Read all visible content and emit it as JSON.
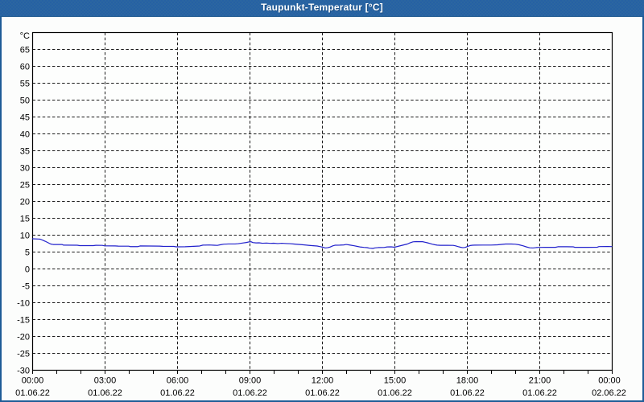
{
  "window": {
    "title": "Taupunkt-Temperatur [°C]"
  },
  "colors": {
    "title_bar_bg": "#2b66a0",
    "title_text": "#ffffff",
    "window_border": "#1e5c97",
    "content_bg": "#fcfdfc",
    "plot_bg": "#fdfefd",
    "axis_frame": "#000000",
    "grid": "#1a1a1a",
    "label_text": "#000000",
    "curve": "#2121cc"
  },
  "chart_data": {
    "type": "line",
    "title": "Taupunkt-Temperatur [°C]",
    "ylabel": "",
    "xlabel": "",
    "y_unit_label": "°C",
    "ylim": [
      -30,
      70
    ],
    "y_tick_step": 5,
    "y_labeled_max": 65,
    "x_range_minutes": [
      0,
      1440
    ],
    "x_major_step_minutes": 180,
    "x_minor_step_minutes": 60,
    "grid": "dashed",
    "legend": "none",
    "x_tick_labels": [
      {
        "time": "00:00",
        "date": "01.06.22"
      },
      {
        "time": "03:00",
        "date": "01.06.22"
      },
      {
        "time": "06:00",
        "date": "01.06.22"
      },
      {
        "time": "09:00",
        "date": "01.06.22"
      },
      {
        "time": "12:00",
        "date": "01.06.22"
      },
      {
        "time": "15:00",
        "date": "01.06.22"
      },
      {
        "time": "18:00",
        "date": "01.06.22"
      },
      {
        "time": "21:00",
        "date": "01.06.22"
      },
      {
        "time": "00:00",
        "date": "02.06.22"
      }
    ],
    "series": [
      {
        "name": "Taupunkt-Temperatur",
        "color": "#2121cc",
        "points_t_min_v_degC": [
          [
            0,
            8.93
          ],
          [
            15,
            8.86
          ],
          [
            19,
            8.81
          ],
          [
            25,
            8.52
          ],
          [
            31,
            8.21
          ],
          [
            39,
            7.74
          ],
          [
            45,
            7.38
          ],
          [
            51,
            7.24
          ],
          [
            73,
            7.24
          ],
          [
            77,
            7.05
          ],
          [
            111,
            7.02
          ],
          [
            117,
            6.9
          ],
          [
            151,
            6.9
          ],
          [
            157,
            7.0
          ],
          [
            173,
            6.98
          ],
          [
            179,
            6.83
          ],
          [
            205,
            6.81
          ],
          [
            213,
            6.76
          ],
          [
            239,
            6.74
          ],
          [
            243,
            6.6
          ],
          [
            261,
            6.6
          ],
          [
            267,
            6.81
          ],
          [
            315,
            6.76
          ],
          [
            323,
            6.69
          ],
          [
            351,
            6.67
          ],
          [
            357,
            6.55
          ],
          [
            379,
            6.57
          ],
          [
            395,
            6.67
          ],
          [
            415,
            6.79
          ],
          [
            423,
            7.05
          ],
          [
            439,
            7.1
          ],
          [
            451,
            7.02
          ],
          [
            459,
            6.98
          ],
          [
            467,
            7.17
          ],
          [
            475,
            7.33
          ],
          [
            487,
            7.4
          ],
          [
            503,
            7.4
          ],
          [
            511,
            7.48
          ],
          [
            523,
            7.69
          ],
          [
            531,
            7.83
          ],
          [
            537,
            8.0
          ],
          [
            543,
            8.05
          ],
          [
            547,
            7.81
          ],
          [
            555,
            7.71
          ],
          [
            563,
            7.74
          ],
          [
            571,
            7.6
          ],
          [
            581,
            7.67
          ],
          [
            591,
            7.57
          ],
          [
            599,
            7.62
          ],
          [
            609,
            7.52
          ],
          [
            619,
            7.6
          ],
          [
            631,
            7.52
          ],
          [
            639,
            7.48
          ],
          [
            649,
            7.38
          ],
          [
            661,
            7.26
          ],
          [
            673,
            7.14
          ],
          [
            685,
            7.0
          ],
          [
            697,
            6.88
          ],
          [
            707,
            6.79
          ],
          [
            715,
            6.6
          ],
          [
            721,
            6.43
          ],
          [
            727,
            6.21
          ],
          [
            733,
            6.29
          ],
          [
            739,
            6.48
          ],
          [
            745,
            6.81
          ],
          [
            751,
            7.02
          ],
          [
            763,
            7.05
          ],
          [
            773,
            7.12
          ],
          [
            779,
            7.24
          ],
          [
            785,
            7.14
          ],
          [
            791,
            7.02
          ],
          [
            799,
            6.86
          ],
          [
            807,
            6.67
          ],
          [
            815,
            6.48
          ],
          [
            823,
            6.38
          ],
          [
            831,
            6.31
          ],
          [
            837,
            6.14
          ],
          [
            845,
            6.07
          ],
          [
            851,
            6.24
          ],
          [
            859,
            6.33
          ],
          [
            873,
            6.36
          ],
          [
            881,
            6.52
          ],
          [
            891,
            6.55
          ],
          [
            899,
            6.43
          ],
          [
            907,
            6.67
          ],
          [
            915,
            6.9
          ],
          [
            923,
            7.14
          ],
          [
            931,
            7.38
          ],
          [
            939,
            7.79
          ],
          [
            945,
            8.02
          ],
          [
            953,
            8.1
          ],
          [
            969,
            8.07
          ],
          [
            975,
            7.9
          ],
          [
            981,
            7.74
          ],
          [
            987,
            7.55
          ],
          [
            993,
            7.33
          ],
          [
            999,
            7.17
          ],
          [
            1005,
            7.05
          ],
          [
            1013,
            7.0
          ],
          [
            1029,
            7.0
          ],
          [
            1045,
            6.98
          ],
          [
            1051,
            6.83
          ],
          [
            1057,
            6.62
          ],
          [
            1063,
            6.43
          ],
          [
            1069,
            6.29
          ],
          [
            1075,
            6.38
          ],
          [
            1081,
            6.67
          ],
          [
            1087,
            6.93
          ],
          [
            1093,
            7.02
          ],
          [
            1099,
            7.05
          ],
          [
            1119,
            7.07
          ],
          [
            1139,
            7.07
          ],
          [
            1155,
            7.14
          ],
          [
            1167,
            7.29
          ],
          [
            1175,
            7.38
          ],
          [
            1187,
            7.4
          ],
          [
            1199,
            7.33
          ],
          [
            1209,
            7.14
          ],
          [
            1219,
            6.83
          ],
          [
            1227,
            6.52
          ],
          [
            1235,
            6.26
          ],
          [
            1243,
            6.21
          ],
          [
            1251,
            6.33
          ],
          [
            1259,
            6.38
          ],
          [
            1275,
            6.4
          ],
          [
            1299,
            6.4
          ],
          [
            1305,
            6.57
          ],
          [
            1327,
            6.57
          ],
          [
            1343,
            6.55
          ],
          [
            1347,
            6.4
          ],
          [
            1379,
            6.4
          ],
          [
            1403,
            6.43
          ],
          [
            1407,
            6.62
          ],
          [
            1429,
            6.64
          ],
          [
            1439,
            6.62
          ]
        ]
      }
    ]
  }
}
